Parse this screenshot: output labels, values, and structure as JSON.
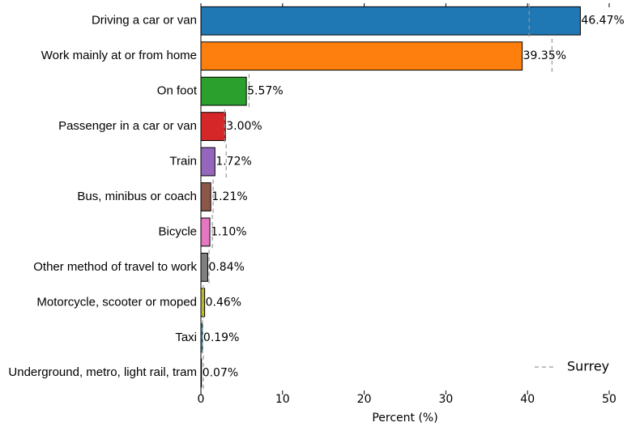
{
  "chart_data": {
    "type": "bar",
    "orientation": "horizontal",
    "xlabel": "Percent (%)",
    "categories": [
      "Driving a car or van",
      "Work mainly at or from home",
      "On foot",
      "Passenger in a car or van",
      "Train",
      "Bus, minibus or coach",
      "Bicycle",
      "Other method of travel to work",
      "Motorcycle, scooter or moped",
      "Taxi",
      "Underground, metro, light rail, tram"
    ],
    "values": [
      46.47,
      39.35,
      5.57,
      3.0,
      1.72,
      1.21,
      1.1,
      0.84,
      0.46,
      0.19,
      0.07
    ],
    "value_labels": [
      "46.47%",
      "39.35%",
      "5.57%",
      "3.00%",
      "1.72%",
      "1.21%",
      "1.10%",
      "0.84%",
      "0.46%",
      "0.19%",
      "0.07%"
    ],
    "colors": [
      "#1f77b4",
      "#ff7f0e",
      "#2ca02c",
      "#d62728",
      "#9467bd",
      "#8c564b",
      "#e377c2",
      "#7f7f7f",
      "#bcbd22",
      "#17becf",
      "#1f77b4"
    ],
    "comparison": {
      "name": "Surrey",
      "color": "#999999",
      "values": [
        40.2,
        43.0,
        5.9,
        2.9,
        3.1,
        1.5,
        1.4,
        1.0,
        0.3,
        0.2,
        0.3
      ]
    },
    "xlim": [
      0,
      50
    ],
    "xticks": [
      0,
      10,
      20,
      30,
      40,
      50
    ],
    "legend": "lower right"
  }
}
